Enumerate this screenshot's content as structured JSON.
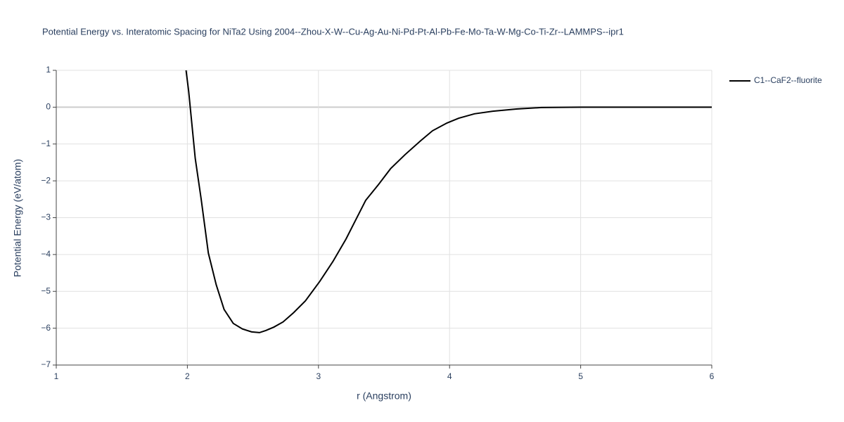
{
  "chart_data": {
    "type": "line",
    "title": "Potential Energy vs. Interatomic Spacing for NiTa2 Using 2004--Zhou-X-W--Cu-Ag-Au-Ni-Pd-Pt-Al-Pb-Fe-Mo-Ta-W-Mg-Co-Ti-Zr--LAMMPS--ipr1",
    "x_label": "r (Angstrom)",
    "y_label": "Potential Energy (eV/atom)",
    "xlim": [
      1,
      6
    ],
    "ylim": [
      -7,
      1
    ],
    "xticks": [
      1,
      2,
      3,
      4,
      5,
      6
    ],
    "yticks": [
      {
        "value": -7,
        "label": "−7"
      },
      {
        "value": -6,
        "label": "−6"
      },
      {
        "value": -5,
        "label": "−5"
      },
      {
        "value": -4,
        "label": "−4"
      },
      {
        "value": -3,
        "label": "−3"
      },
      {
        "value": -2,
        "label": "−2"
      },
      {
        "value": -1,
        "label": "−1"
      },
      0,
      1
    ],
    "grid": true,
    "legend": "top-right",
    "x": [
      1.99,
      2.01,
      2.06,
      2.105,
      2.16,
      2.22,
      2.28,
      2.35,
      2.42,
      2.49,
      2.55,
      2.6,
      2.66,
      2.73,
      2.81,
      2.9,
      3.01,
      3.11,
      3.21,
      3.36,
      3.46,
      3.55,
      3.66,
      3.78,
      3.87,
      3.98,
      4.07,
      4.19,
      4.33,
      4.51,
      4.7,
      5.0,
      6.0
    ],
    "series": [
      {
        "name": "C1--CaF2--fluorite",
        "color": "#000000",
        "values": [
          1.0,
          0.43,
          -1.39,
          -2.49,
          -3.96,
          -4.82,
          -5.49,
          -5.87,
          -6.02,
          -6.1,
          -6.12,
          -6.06,
          -5.97,
          -5.83,
          -5.58,
          -5.26,
          -4.73,
          -4.19,
          -3.58,
          -2.53,
          -2.09,
          -1.67,
          -1.29,
          -0.91,
          -0.64,
          -0.43,
          -0.3,
          -0.18,
          -0.11,
          -0.05,
          -0.01,
          0,
          0
        ]
      }
    ]
  }
}
